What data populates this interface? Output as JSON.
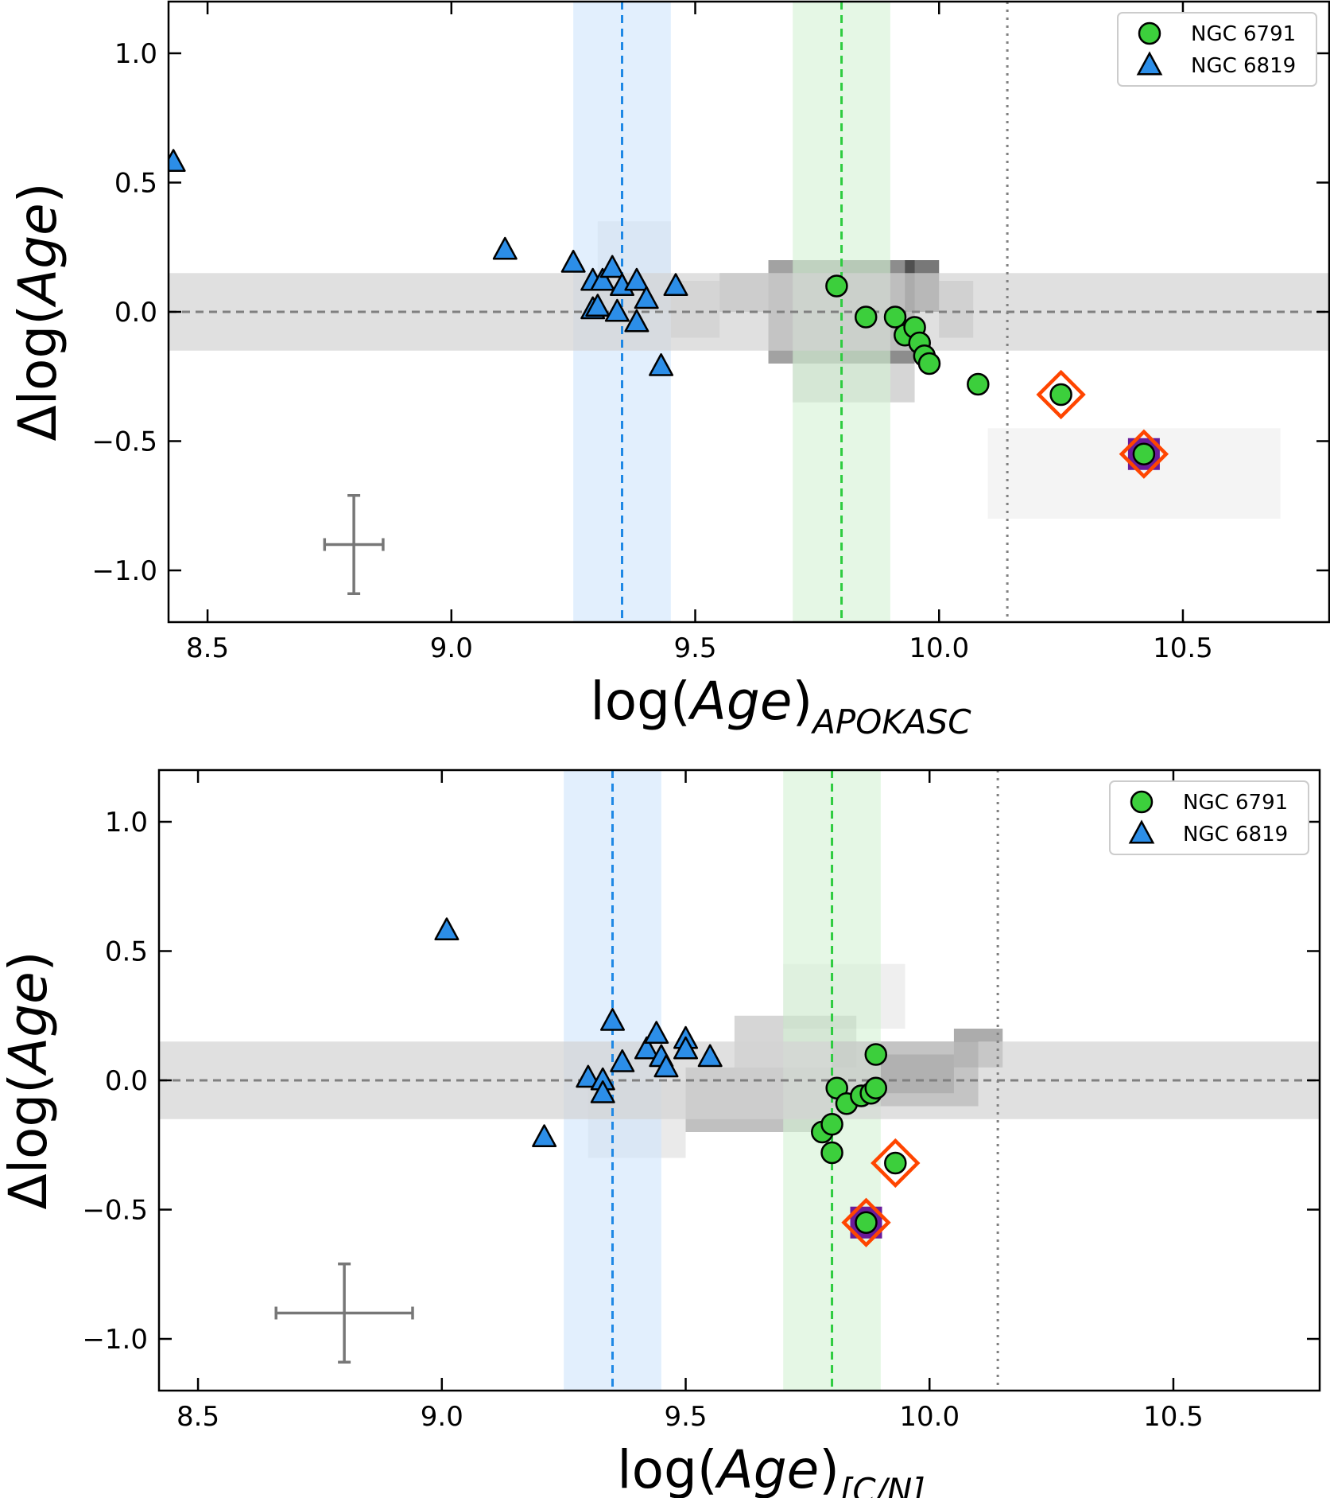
{
  "chart_data": [
    {
      "type": "scatter",
      "id": "top",
      "xlabel": {
        "main": "log(",
        "italic": "Age",
        "close": ")",
        "subscript": "APOKASC"
      },
      "ylabel": {
        "prefix": "Δlog(",
        "italic": "Age",
        "close": ")"
      },
      "xlim": [
        8.42,
        10.8
      ],
      "ylim": [
        -1.2,
        1.2
      ],
      "xticks": [
        {
          "v": 8.5,
          "label": "8.5"
        },
        {
          "v": 9.0,
          "label": "9.0"
        },
        {
          "v": 9.5,
          "label": "9.5"
        },
        {
          "v": 10.0,
          "label": "10.0"
        },
        {
          "v": 10.5,
          "label": "10.5"
        }
      ],
      "yticks": [
        {
          "v": 1.0,
          "label": "1.0"
        },
        {
          "v": 0.5,
          "label": "0.5"
        },
        {
          "v": 0.0,
          "label": "0.0"
        },
        {
          "v": -0.5,
          "label": "−0.5"
        },
        {
          "v": -1.0,
          "label": "−1.0"
        }
      ],
      "bands": [
        {
          "axis": "x",
          "from": 9.25,
          "to": 9.45,
          "color": "#cfe4fb"
        },
        {
          "axis": "x",
          "from": 9.7,
          "to": 9.9,
          "color": "#d4f1d4"
        },
        {
          "axis": "y",
          "from": -0.15,
          "to": 0.15,
          "color": "#d3d3d3"
        }
      ],
      "lines": [
        {
          "axis": "x",
          "v": 9.35,
          "style": "dashed",
          "color": "#1e88e5"
        },
        {
          "axis": "x",
          "v": 9.8,
          "style": "dashed",
          "color": "#2ecc40"
        },
        {
          "axis": "x",
          "v": 10.14,
          "style": "dotted",
          "color": "#808080"
        },
        {
          "axis": "y",
          "v": 0.0,
          "style": "dashed",
          "color": "#808080"
        }
      ],
      "density_bins": [
        {
          "x0": 9.55,
          "x1": 9.65,
          "y0": 0.0,
          "y1": 0.15,
          "alpha": 0.3
        },
        {
          "x0": 9.65,
          "x1": 9.8,
          "y0": -0.2,
          "y1": 0.2,
          "alpha": 0.45
        },
        {
          "x0": 9.8,
          "x1": 9.95,
          "y0": -0.2,
          "y1": 0.2,
          "alpha": 0.55
        },
        {
          "x0": 9.93,
          "x1": 10.0,
          "y0": 0.0,
          "y1": 0.2,
          "alpha": 0.65
        },
        {
          "x0": 9.45,
          "x1": 9.55,
          "y0": -0.1,
          "y1": 0.12,
          "alpha": 0.18
        },
        {
          "x0": 10.0,
          "x1": 10.07,
          "y0": -0.1,
          "y1": 0.12,
          "alpha": 0.25
        },
        {
          "x0": 9.7,
          "x1": 9.95,
          "y0": -0.35,
          "y1": -0.2,
          "alpha": 0.2
        },
        {
          "x0": 9.3,
          "x1": 9.45,
          "y0": 0.0,
          "y1": 0.35,
          "alpha": 0.1
        },
        {
          "x0": 10.1,
          "x1": 10.7,
          "y0": -0.8,
          "y1": -0.45,
          "alpha": 0.05
        }
      ],
      "series": [
        {
          "name": "NGC 6791",
          "marker": "circle",
          "color": "#3ccf3c",
          "points": [
            [
              9.79,
              0.1
            ],
            [
              9.85,
              -0.02
            ],
            [
              9.91,
              -0.02
            ],
            [
              9.93,
              -0.09
            ],
            [
              9.95,
              -0.06
            ],
            [
              9.96,
              -0.12
            ],
            [
              9.97,
              -0.17
            ],
            [
              9.98,
              -0.2
            ],
            [
              10.08,
              -0.28
            ],
            [
              10.25,
              -0.32
            ],
            [
              10.42,
              -0.55
            ]
          ]
        },
        {
          "name": "NGC 6819",
          "marker": "triangle",
          "color": "#2c8ee8",
          "points": [
            [
              8.43,
              0.58
            ],
            [
              9.11,
              0.24
            ],
            [
              9.25,
              0.19
            ],
            [
              9.29,
              0.12
            ],
            [
              9.29,
              0.01
            ],
            [
              9.31,
              0.12
            ],
            [
              9.3,
              0.02
            ],
            [
              9.33,
              0.17
            ],
            [
              9.35,
              0.1
            ],
            [
              9.34,
              0.0
            ],
            [
              9.38,
              0.12
            ],
            [
              9.4,
              0.05
            ],
            [
              9.38,
              -0.04
            ],
            [
              9.43,
              -0.21
            ],
            [
              9.46,
              0.1
            ]
          ]
        }
      ],
      "highlighted": [
        {
          "x": 10.25,
          "y": -0.32,
          "marker": "diamond",
          "color": "#ff4500"
        },
        {
          "x": 10.42,
          "y": -0.55,
          "marker": "diamond",
          "color": "#ff4500",
          "square": "#6a1b9a"
        }
      ],
      "errorbar": {
        "x": 8.8,
        "y": -0.9,
        "xerr": 0.06,
        "yerr": 0.19
      },
      "legend": {
        "position": "top-right",
        "entries": [
          "NGC 6791",
          "NGC 6819"
        ]
      }
    },
    {
      "type": "scatter",
      "id": "bottom",
      "xlabel": {
        "main": "log(",
        "italic": "Age",
        "close": ")",
        "subscript": "[C/N]"
      },
      "ylabel": {
        "prefix": "Δlog(",
        "italic": "Age",
        "close": ")"
      },
      "xlim": [
        8.42,
        10.8
      ],
      "ylim": [
        -1.2,
        1.2
      ],
      "xticks": [
        {
          "v": 8.5,
          "label": "8.5"
        },
        {
          "v": 9.0,
          "label": "9.0"
        },
        {
          "v": 9.5,
          "label": "9.5"
        },
        {
          "v": 10.0,
          "label": "10.0"
        },
        {
          "v": 10.5,
          "label": "10.5"
        }
      ],
      "yticks": [
        {
          "v": 1.0,
          "label": "1.0"
        },
        {
          "v": 0.5,
          "label": "0.5"
        },
        {
          "v": 0.0,
          "label": "0.0"
        },
        {
          "v": -0.5,
          "label": "−0.5"
        },
        {
          "v": -1.0,
          "label": "−1.0"
        }
      ],
      "bands": [
        {
          "axis": "x",
          "from": 9.25,
          "to": 9.45,
          "color": "#cfe4fb"
        },
        {
          "axis": "x",
          "from": 9.7,
          "to": 9.9,
          "color": "#d4f1d4"
        },
        {
          "axis": "y",
          "from": -0.15,
          "to": 0.15,
          "color": "#d3d3d3"
        }
      ],
      "lines": [
        {
          "axis": "x",
          "v": 9.35,
          "style": "dashed",
          "color": "#1e88e5"
        },
        {
          "axis": "x",
          "v": 9.8,
          "style": "dashed",
          "color": "#2ecc40"
        },
        {
          "axis": "x",
          "v": 10.14,
          "style": "dotted",
          "color": "#808080"
        },
        {
          "axis": "y",
          "v": 0.0,
          "style": "dashed",
          "color": "#808080"
        }
      ],
      "density_bins": [
        {
          "x0": 9.5,
          "x1": 9.8,
          "y0": -0.2,
          "y1": 0.05,
          "alpha": 0.3
        },
        {
          "x0": 9.8,
          "x1": 10.1,
          "y0": -0.1,
          "y1": 0.15,
          "alpha": 0.45
        },
        {
          "x0": 9.9,
          "x1": 10.05,
          "y0": -0.05,
          "y1": 0.1,
          "alpha": 0.55
        },
        {
          "x0": 10.05,
          "x1": 10.15,
          "y0": 0.05,
          "y1": 0.2,
          "alpha": 0.4
        },
        {
          "x0": 9.6,
          "x1": 9.85,
          "y0": 0.05,
          "y1": 0.25,
          "alpha": 0.2
        },
        {
          "x0": 9.3,
          "x1": 9.5,
          "y0": -0.3,
          "y1": 0.0,
          "alpha": 0.1
        },
        {
          "x0": 9.7,
          "x1": 9.95,
          "y0": 0.2,
          "y1": 0.45,
          "alpha": 0.08
        }
      ],
      "series": [
        {
          "name": "NGC 6791",
          "marker": "circle",
          "color": "#3ccf3c",
          "points": [
            [
              9.89,
              0.1
            ],
            [
              9.81,
              -0.03
            ],
            [
              9.83,
              -0.09
            ],
            [
              9.86,
              -0.06
            ],
            [
              9.88,
              -0.05
            ],
            [
              9.89,
              -0.03
            ],
            [
              9.78,
              -0.2
            ],
            [
              9.8,
              -0.17
            ],
            [
              9.8,
              -0.28
            ],
            [
              9.93,
              -0.32
            ],
            [
              9.87,
              -0.55
            ]
          ]
        },
        {
          "name": "NGC 6819",
          "marker": "triangle",
          "color": "#2c8ee8",
          "points": [
            [
              9.01,
              0.58
            ],
            [
              9.21,
              -0.22
            ],
            [
              9.3,
              0.01
            ],
            [
              9.33,
              0.0
            ],
            [
              9.33,
              -0.05
            ],
            [
              9.35,
              0.23
            ],
            [
              9.37,
              0.07
            ],
            [
              9.42,
              0.12
            ],
            [
              9.44,
              0.18
            ],
            [
              9.45,
              0.09
            ],
            [
              9.46,
              0.05
            ],
            [
              9.5,
              0.16
            ],
            [
              9.5,
              0.12
            ],
            [
              9.55,
              0.09
            ]
          ]
        }
      ],
      "highlighted": [
        {
          "x": 9.93,
          "y": -0.32,
          "marker": "diamond",
          "color": "#ff4500"
        },
        {
          "x": 9.87,
          "y": -0.55,
          "marker": "diamond",
          "color": "#ff4500",
          "square": "#6a1b9a"
        }
      ],
      "errorbar": {
        "x": 8.8,
        "y": -0.9,
        "xerr": 0.14,
        "yerr": 0.19
      },
      "legend": {
        "position": "top-right",
        "entries": [
          "NGC 6791",
          "NGC 6819"
        ]
      }
    }
  ]
}
